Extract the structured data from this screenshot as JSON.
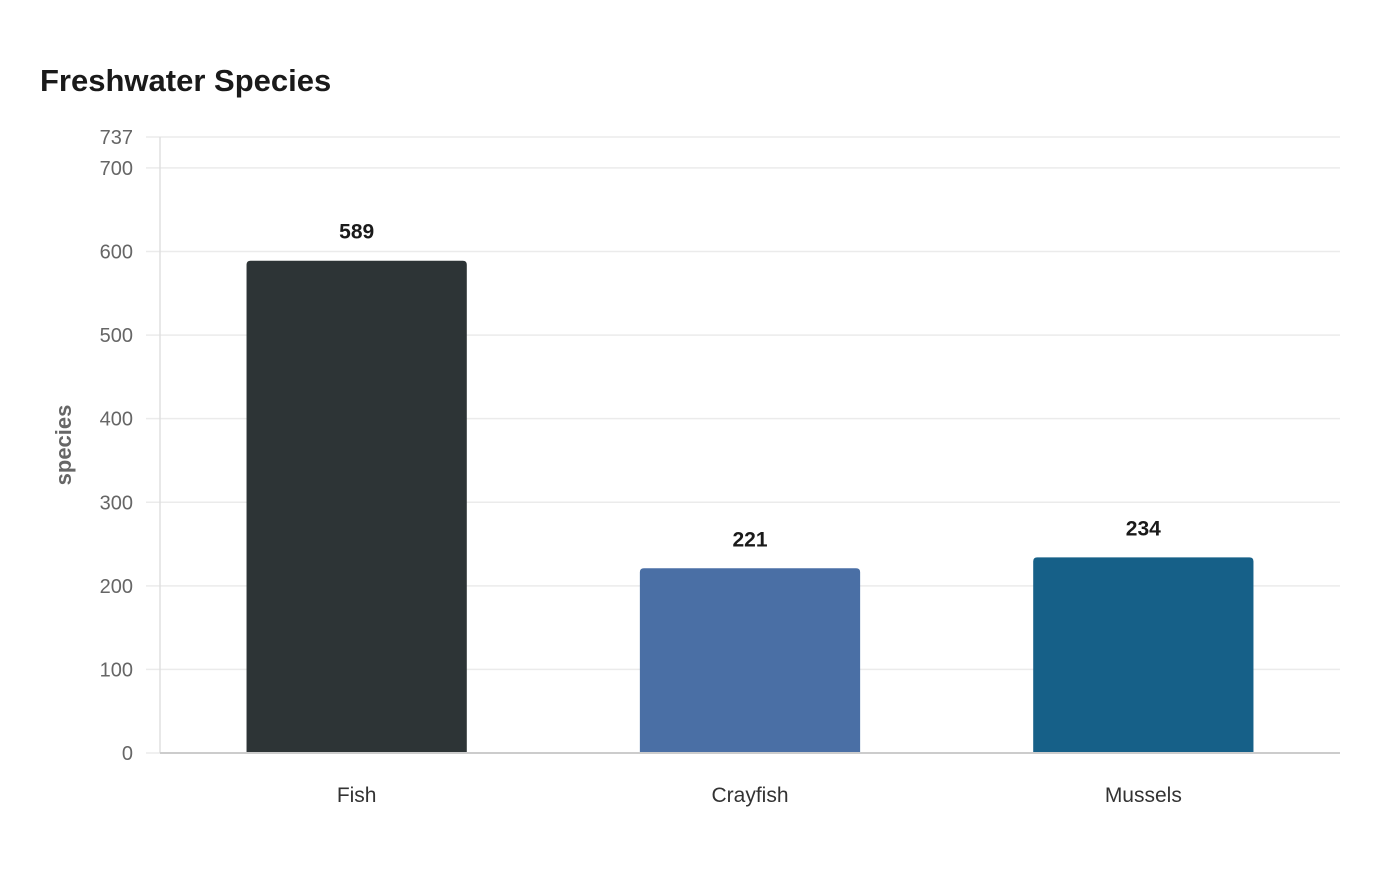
{
  "chart_data": {
    "type": "bar",
    "title": "Freshwater Species",
    "xlabel": "",
    "ylabel": "species",
    "categories": [
      "Fish",
      "Crayfish",
      "Mussels"
    ],
    "values": [
      589,
      221,
      234
    ],
    "colors": [
      "#2d3436",
      "#4a6fa5",
      "#166088"
    ],
    "ylim": [
      0,
      737
    ],
    "yticks": [
      0,
      100,
      200,
      300,
      400,
      500,
      600,
      700,
      737
    ],
    "grid": true,
    "legend": "none"
  }
}
